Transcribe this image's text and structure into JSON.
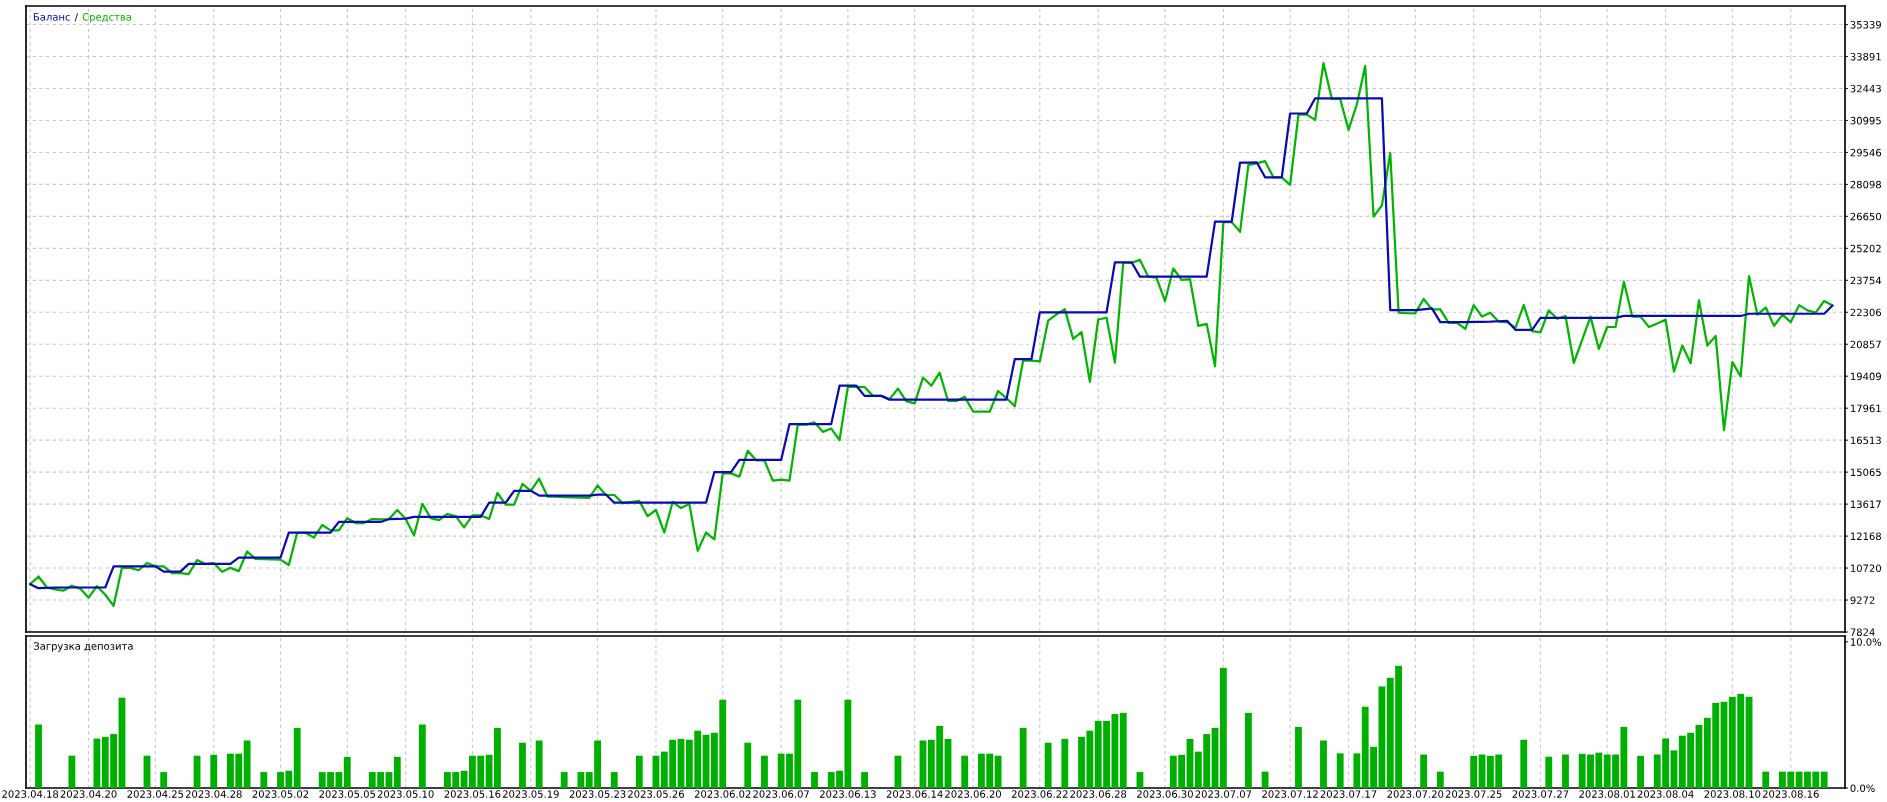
{
  "chart_data": [
    {
      "type": "line",
      "legend": "top left",
      "tick_labels": "y",
      "grid": true,
      "annotations": [
        "/"
      ],
      "ylim": [
        7824,
        36180
      ],
      "yticks": [
        7824,
        9272,
        10720,
        12168,
        13617,
        15065,
        16513,
        17961,
        19409,
        20857,
        22306,
        23754,
        25202,
        26650,
        28098,
        29546,
        30995,
        32443,
        33891,
        35339
      ],
      "categories": [
        "2023.04.18",
        null,
        null,
        null,
        null,
        null,
        null,
        "2023.04.20",
        null,
        null,
        null,
        null,
        null,
        null,
        null,
        "2023.04.25",
        null,
        null,
        null,
        null,
        null,
        null,
        "2023.04.28",
        null,
        null,
        null,
        null,
        null,
        null,
        null,
        "2023.05.02",
        null,
        null,
        null,
        null,
        null,
        null,
        null,
        "2023.05.05",
        null,
        null,
        null,
        null,
        null,
        null,
        "2023.05.10",
        null,
        null,
        null,
        null,
        null,
        null,
        null,
        "2023.05.16",
        null,
        null,
        null,
        null,
        null,
        null,
        "2023.05.19",
        null,
        null,
        null,
        null,
        null,
        null,
        null,
        "2023.05.23",
        null,
        null,
        null,
        null,
        null,
        null,
        "2023.05.26",
        null,
        null,
        null,
        null,
        null,
        null,
        null,
        "2023.06.02",
        null,
        null,
        null,
        null,
        null,
        null,
        "2023.06.07",
        null,
        null,
        null,
        null,
        null,
        null,
        null,
        "2023.06.13",
        null,
        null,
        null,
        null,
        null,
        null,
        null,
        "2023.06.14",
        null,
        null,
        null,
        null,
        null,
        null,
        "2023.06.20",
        null,
        null,
        null,
        null,
        null,
        null,
        null,
        "2023.06.22",
        null,
        null,
        null,
        null,
        null,
        null,
        "2023.06.28",
        null,
        null,
        null,
        null,
        null,
        null,
        null,
        "2023.06.30",
        null,
        null,
        null,
        null,
        null,
        null,
        "2023.07.07",
        null,
        null,
        null,
        null,
        null,
        null,
        null,
        "2023.07.12",
        null,
        null,
        null,
        null,
        null,
        null,
        "2023.07.17",
        null,
        null,
        null,
        null,
        null,
        null,
        null,
        "2023.07.20",
        null,
        null,
        null,
        null,
        null,
        null,
        "2023.07.25",
        null,
        null,
        null,
        null,
        null,
        null,
        null,
        "2023.07.27",
        null,
        null,
        null,
        null,
        null,
        null,
        null,
        "2023.08.01",
        null,
        null,
        null,
        null,
        null,
        null,
        "2023.08.04",
        null,
        null,
        null,
        null,
        null,
        null,
        null,
        "2023.08.10",
        null,
        null,
        null,
        null,
        null,
        null,
        "2023.08.16",
        null,
        null,
        null,
        null,
        null,
        null
      ],
      "series": [
        {
          "name": "Баланс",
          "color": "#0a0ab4",
          "values": [
            9990,
            9810,
            9820,
            9830,
            9840,
            9840,
            9840,
            9840,
            9840,
            9840,
            10800,
            10800,
            10800,
            10800,
            10800,
            10800,
            10560,
            10560,
            10560,
            10910,
            10910,
            10910,
            10910,
            10910,
            10910,
            11190,
            11190,
            11190,
            11190,
            11190,
            11190,
            12330,
            12330,
            12330,
            12330,
            12330,
            12330,
            12810,
            12810,
            12810,
            12810,
            12810,
            12810,
            12940,
            12950,
            12960,
            13040,
            13040,
            13040,
            13040,
            13040,
            13040,
            13040,
            13040,
            13040,
            13680,
            13680,
            13680,
            14220,
            14220,
            14220,
            14000,
            14000,
            14000,
            14000,
            14000,
            14000,
            14000,
            14050,
            14050,
            13680,
            13680,
            13680,
            13680,
            13680,
            13680,
            13680,
            13680,
            13680,
            13680,
            13680,
            13680,
            15070,
            15070,
            15070,
            15620,
            15620,
            15620,
            15620,
            15620,
            15620,
            17240,
            17240,
            17240,
            17240,
            17240,
            17240,
            18980,
            18980,
            18980,
            18520,
            18520,
            18520,
            18350,
            18350,
            18350,
            18350,
            18350,
            18350,
            18350,
            18350,
            18350,
            18350,
            18350,
            18350,
            18350,
            18350,
            18350,
            20180,
            20180,
            20180,
            22300,
            22300,
            22300,
            22300,
            22300,
            22300,
            22300,
            22300,
            22300,
            24570,
            24570,
            24570,
            23920,
            23920,
            23920,
            23920,
            23920,
            23920,
            23920,
            23920,
            23920,
            26410,
            26410,
            26410,
            29090,
            29090,
            29100,
            28420,
            28420,
            28420,
            31310,
            31310,
            31310,
            32000,
            32000,
            32000,
            32000,
            32000,
            32000,
            32000,
            32000,
            32000,
            22400,
            22400,
            22400,
            22400,
            22440,
            22480,
            21860,
            21860,
            21860,
            21860,
            21870,
            21870,
            21880,
            21900,
            21920,
            21510,
            21510,
            21510,
            22050,
            22050,
            22050,
            22050,
            22050,
            22050,
            22050,
            22050,
            22050,
            22050,
            22140,
            22140,
            22140,
            22140,
            22140,
            22140,
            22140,
            22140,
            22140,
            22140,
            22140,
            22140,
            22140,
            22140,
            22140,
            22240,
            22240,
            22240,
            22240,
            22240,
            22240,
            22240,
            22240,
            22240,
            22240,
            22610,
            null
          ]
        },
        {
          "name": "Средства",
          "color": "#00b400",
          "values": [
            9990,
            10340,
            9840,
            9750,
            9700,
            9920,
            9790,
            9380,
            9900,
            9510,
            9010,
            10730,
            10730,
            10620,
            10950,
            10800,
            10800,
            10490,
            10490,
            10450,
            11080,
            10900,
            10950,
            10550,
            10730,
            10580,
            11470,
            11140,
            11120,
            11110,
            11100,
            10860,
            12320,
            12320,
            12100,
            12670,
            12430,
            12430,
            12980,
            12760,
            12760,
            12940,
            12930,
            12940,
            13350,
            12940,
            12210,
            13630,
            12980,
            12890,
            13170,
            13070,
            12560,
            13110,
            13110,
            12940,
            14120,
            13590,
            13590,
            14530,
            14220,
            14770,
            13960,
            13950,
            13930,
            13920,
            13910,
            13900,
            14460,
            14030,
            14030,
            13660,
            13710,
            13760,
            13070,
            13350,
            12330,
            13720,
            13440,
            13630,
            11500,
            12330,
            12020,
            15010,
            15010,
            14860,
            16030,
            15600,
            15600,
            14680,
            14730,
            14680,
            17220,
            17220,
            17320,
            16890,
            17040,
            16520,
            18940,
            18930,
            18920,
            18520,
            18520,
            18370,
            18850,
            18280,
            18180,
            19350,
            18980,
            19570,
            18290,
            18290,
            18480,
            17810,
            17810,
            17810,
            18740,
            18420,
            18050,
            20120,
            20120,
            20080,
            21930,
            22210,
            22450,
            21100,
            21410,
            19160,
            21980,
            22060,
            20030,
            24550,
            24550,
            24680,
            23920,
            23870,
            22810,
            24290,
            23770,
            23810,
            21690,
            21780,
            19860,
            26390,
            26390,
            25950,
            28980,
            29050,
            29150,
            28420,
            28420,
            28080,
            31260,
            31260,
            31020,
            33590,
            31970,
            31970,
            30570,
            31730,
            33460,
            26640,
            27150,
            29520,
            22290,
            22270,
            22260,
            22910,
            22440,
            22440,
            21830,
            21830,
            21550,
            22630,
            22110,
            22290,
            21880,
            21860,
            21600,
            22630,
            21450,
            21400,
            22390,
            22010,
            22140,
            20010,
            21060,
            22110,
            20650,
            21640,
            21640,
            23690,
            22110,
            22110,
            21640,
            21800,
            21970,
            19620,
            20800,
            20000,
            22850,
            20800,
            21230,
            16970,
            20050,
            19400,
            23940,
            22200,
            22520,
            21690,
            22200,
            21860,
            22630,
            22390,
            22290,
            22820,
            22610,
            null
          ]
        }
      ]
    },
    {
      "type": "bar",
      "title": "Загрузка депозита",
      "grid": "x",
      "color": "#00b000",
      "ylim": [
        0,
        10.4
      ],
      "yticks": [
        {
          "value": 0,
          "label": "0.0%"
        },
        {
          "value": 10,
          "label": "10.0%"
        }
      ],
      "categories": [
        "2023.04.18",
        null,
        null,
        null,
        null,
        null,
        null,
        "2023.04.20",
        null,
        null,
        null,
        null,
        null,
        null,
        null,
        "2023.04.25",
        null,
        null,
        null,
        null,
        null,
        null,
        "2023.04.28",
        null,
        null,
        null,
        null,
        null,
        null,
        null,
        "2023.05.02",
        null,
        null,
        null,
        null,
        null,
        null,
        null,
        "2023.05.05",
        null,
        null,
        null,
        null,
        null,
        null,
        "2023.05.10",
        null,
        null,
        null,
        null,
        null,
        null,
        null,
        "2023.05.16",
        null,
        null,
        null,
        null,
        null,
        null,
        "2023.05.19",
        null,
        null,
        null,
        null,
        null,
        null,
        null,
        "2023.05.23",
        null,
        null,
        null,
        null,
        null,
        null,
        "2023.05.26",
        null,
        null,
        null,
        null,
        null,
        null,
        null,
        "2023.06.02",
        null,
        null,
        null,
        null,
        null,
        null,
        "2023.06.07",
        null,
        null,
        null,
        null,
        null,
        null,
        null,
        "2023.06.13",
        null,
        null,
        null,
        null,
        null,
        null,
        null,
        "2023.06.14",
        null,
        null,
        null,
        null,
        null,
        null,
        "2023.06.20",
        null,
        null,
        null,
        null,
        null,
        null,
        null,
        "2023.06.22",
        null,
        null,
        null,
        null,
        null,
        null,
        "2023.06.28",
        null,
        null,
        null,
        null,
        null,
        null,
        null,
        "2023.06.30",
        null,
        null,
        null,
        null,
        null,
        null,
        "2023.07.07",
        null,
        null,
        null,
        null,
        null,
        null,
        null,
        "2023.07.12",
        null,
        null,
        null,
        null,
        null,
        null,
        "2023.07.17",
        null,
        null,
        null,
        null,
        null,
        null,
        null,
        "2023.07.20",
        null,
        null,
        null,
        null,
        null,
        null,
        "2023.07.25",
        null,
        null,
        null,
        null,
        null,
        null,
        null,
        "2023.07.27",
        null,
        null,
        null,
        null,
        null,
        null,
        null,
        "2023.08.01",
        null,
        null,
        null,
        null,
        null,
        null,
        "2023.08.04",
        null,
        null,
        null,
        null,
        null,
        null,
        null,
        "2023.08.10",
        null,
        null,
        null,
        null,
        null,
        null,
        "2023.08.16",
        null,
        null,
        null,
        null,
        null,
        null
      ],
      "values": [
        null,
        4.34,
        null,
        null,
        null,
        2.21,
        null,
        null,
        3.38,
        3.5,
        3.69,
        6.18,
        null,
        null,
        2.21,
        null,
        1.09,
        null,
        null,
        null,
        2.21,
        null,
        2.27,
        null,
        2.35,
        2.35,
        3.25,
        null,
        1.09,
        null,
        1.09,
        1.18,
        4.11,
        null,
        null,
        1.09,
        1.09,
        1.09,
        2.13,
        null,
        null,
        1.09,
        1.09,
        1.09,
        2.13,
        null,
        null,
        4.34,
        null,
        null,
        1.09,
        1.09,
        1.18,
        2.21,
        2.21,
        2.27,
        4.11,
        null,
        null,
        3.1,
        null,
        3.25,
        null,
        null,
        1.09,
        null,
        1.09,
        1.09,
        3.25,
        null,
        1.09,
        null,
        null,
        2.21,
        null,
        2.21,
        2.49,
        3.3,
        3.36,
        3.3,
        3.92,
        3.64,
        3.78,
        6.04,
        null,
        null,
        3.1,
        null,
        2.21,
        null,
        2.35,
        2.35,
        6.04,
        null,
        1.09,
        null,
        1.09,
        1.18,
        6.04,
        null,
        1.09,
        null,
        null,
        null,
        2.21,
        null,
        null,
        3.25,
        3.3,
        4.25,
        3.36,
        null,
        2.21,
        null,
        2.35,
        2.35,
        2.21,
        null,
        null,
        4.11,
        null,
        null,
        3.1,
        null,
        3.36,
        null,
        3.5,
        3.92,
        4.59,
        4.59,
        5.06,
        5.14,
        null,
        1.09,
        null,
        null,
        null,
        2.21,
        2.27,
        3.36,
        2.49,
        3.69,
        4.11,
        8.22,
        null,
        null,
        5.14,
        null,
        1.12,
        null,
        null,
        null,
        4.18,
        null,
        null,
        3.25,
        null,
        2.37,
        null,
        2.37,
        5.56,
        2.82,
        6.95,
        7.54,
        8.36,
        null,
        null,
        2.29,
        null,
        1.12,
        null,
        null,
        null,
        2.2,
        2.29,
        2.2,
        2.29,
        null,
        null,
        3.3,
        null,
        null,
        2.14,
        null,
        2.29,
        null,
        2.34,
        2.29,
        2.42,
        2.29,
        2.29,
        4.18,
        null,
        2.2,
        null,
        2.29,
        3.39,
        2.57,
        3.58,
        3.78,
        4.32,
        4.8,
        5.82,
        5.9,
        6.24,
        6.44,
        6.24,
        null,
        1.12,
        null,
        1.12,
        1.12,
        1.12,
        1.12,
        1.12,
        1.12,
        null,
        null
      ]
    }
  ]
}
